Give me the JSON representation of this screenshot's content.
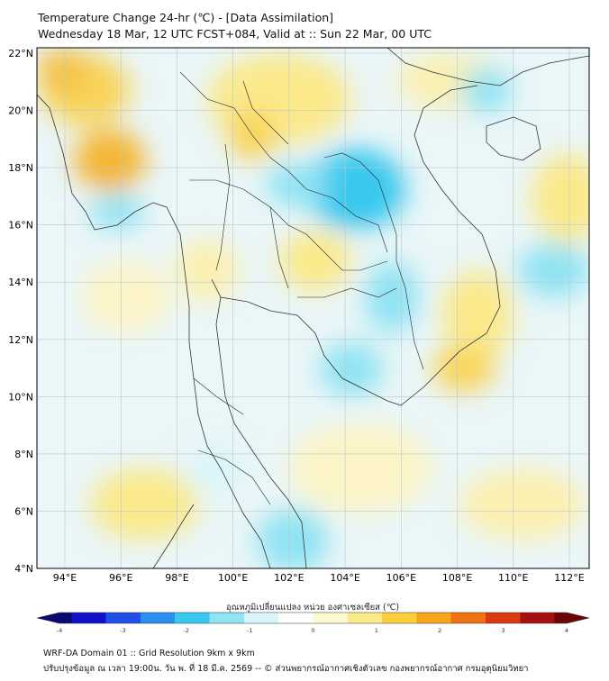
{
  "title": {
    "line1": "Temperature Change 24-hr (℃) - [Data Assimilation]",
    "line2": "Wednesday 18 Mar, 12 UTC FCST+084, Valid at :: Sun 22 Mar, 00 UTC"
  },
  "map": {
    "lat_labels": [
      "22°N",
      "20°N",
      "18°N",
      "16°N",
      "14°N",
      "12°N",
      "10°N",
      "8°N",
      "6°N",
      "4°N"
    ],
    "lon_labels": [
      "94°E",
      "96°E",
      "98°E",
      "100°E",
      "102°E",
      "104°E",
      "106°E",
      "108°E",
      "110°E",
      "112°E"
    ],
    "background_color": "#eaf6f8",
    "gridline_color": "#b9c9cc"
  },
  "colorbar": {
    "label": "อุณหภูมิเปลี่ยนแปลง หน่วย องศาเซลเซียส (℃)",
    "min": -4,
    "max": 4,
    "ticks": [
      "-4",
      "-3",
      "-2",
      "-1",
      "0",
      "1",
      "2",
      "3",
      "4"
    ],
    "colors": [
      "#0a0a6e",
      "#1010c8",
      "#1f4fe6",
      "#2a8ff0",
      "#39c8ee",
      "#8fe3f3",
      "#d8f6fa",
      "#ffffff",
      "#fcfbd0",
      "#fbe98a",
      "#f9cf3c",
      "#f5a616",
      "#ee7212",
      "#db3a10",
      "#a51010",
      "#6e0505"
    ]
  },
  "footer": {
    "line1": "WRF-DA Domain 01 :: Grid Resolution 9km x 9km",
    "line2": "ปรับปรุงข้อมูล ณ เวลา 19:00น. วัน พ. ที่ 18 มี.ค. 2569 -- © ส่วนพยากรณ์อากาศเชิงตัวเลข กองพยากรณ์อากาศ กรมอุตุนิยมวิทยา"
  }
}
